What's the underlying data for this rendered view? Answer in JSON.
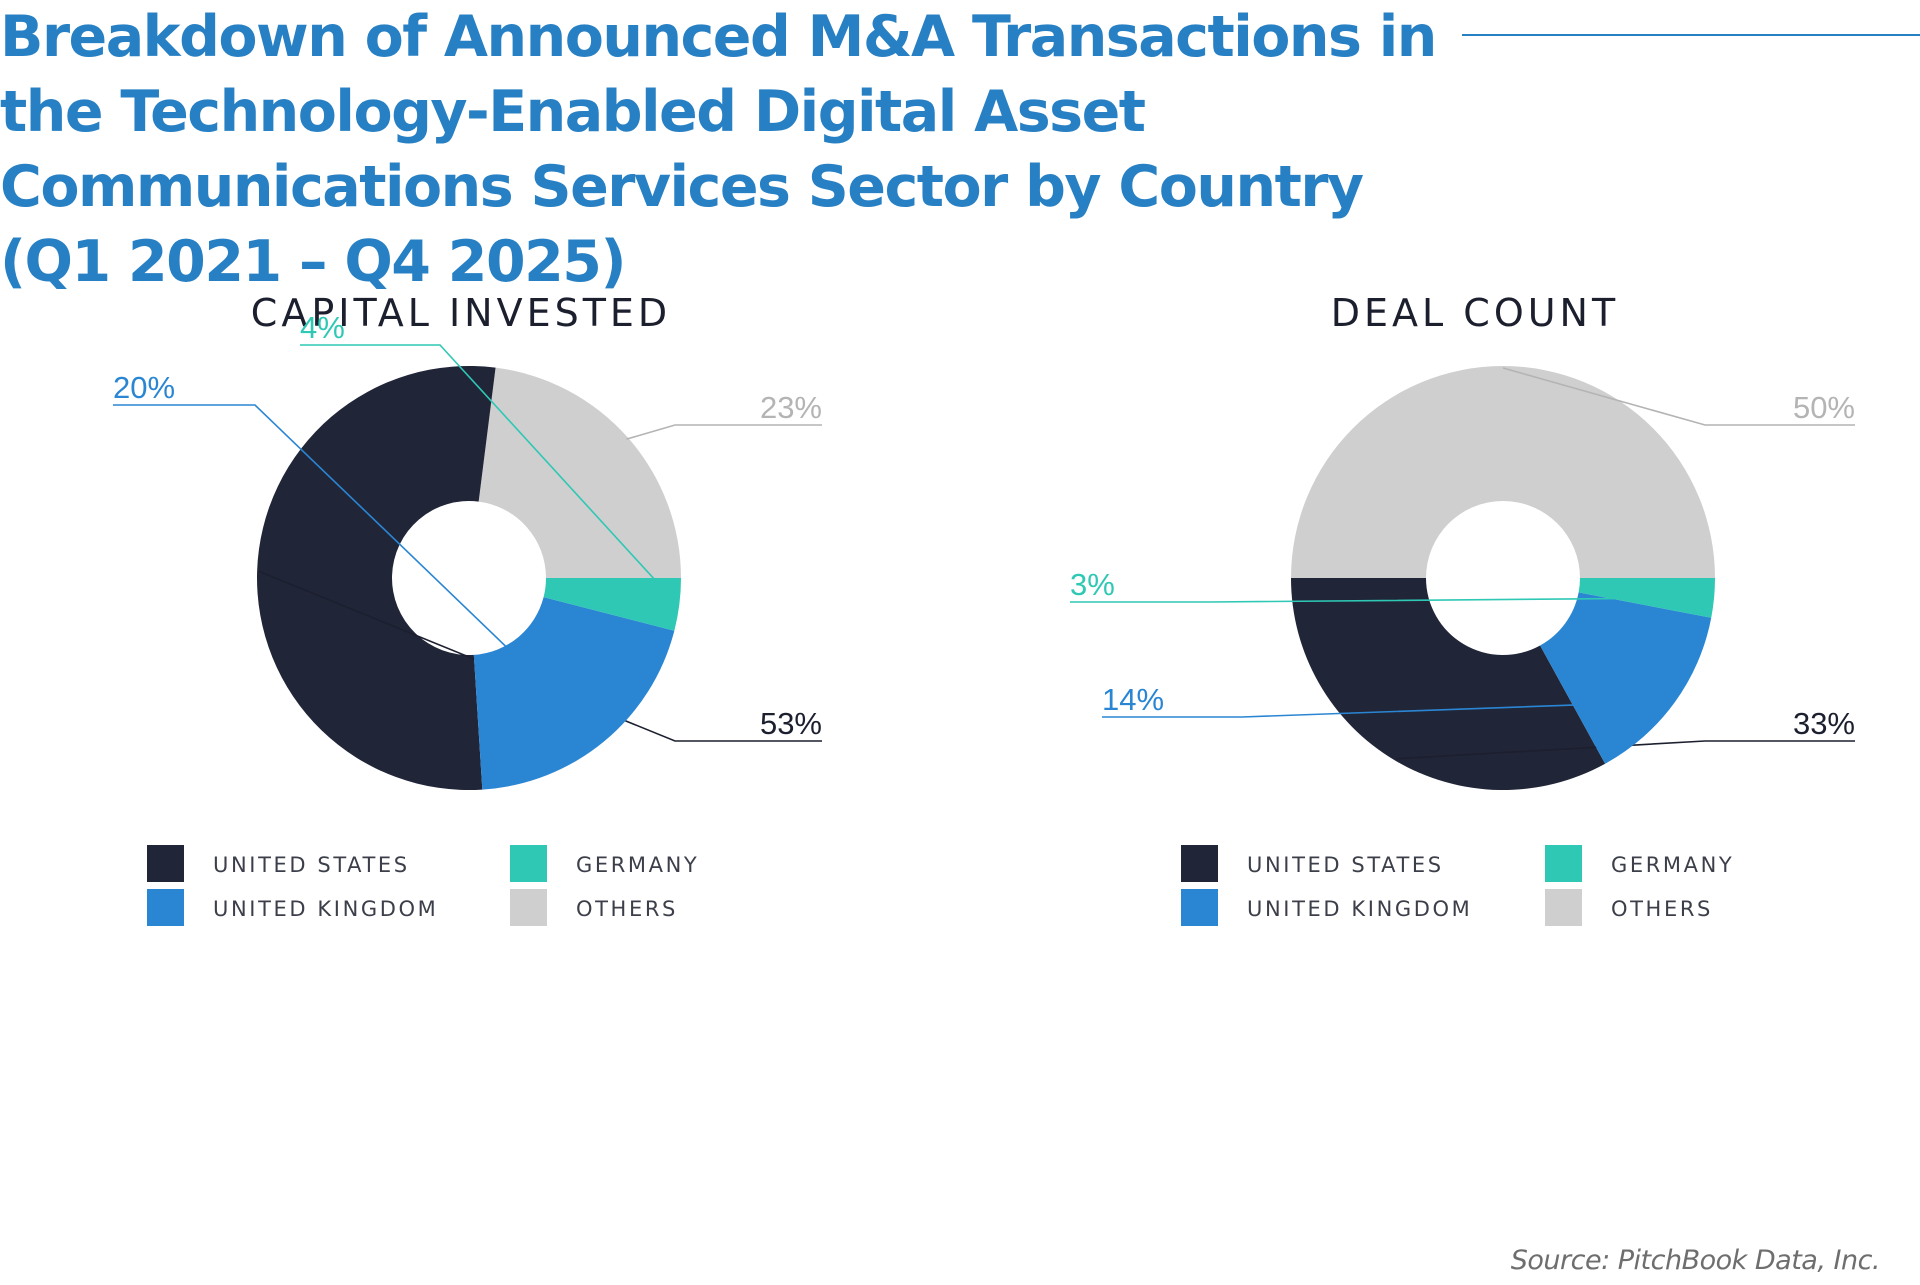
{
  "title": "Breakdown of Announced M&A Transactions in the Technology-Enabled Digital Asset Communications Services Sector by Country (Q1 2021 – Q4 2025)",
  "source": "Source: PitchBook Data, Inc.",
  "colors": {
    "united_states": "#212538",
    "united_kingdom": "#2a86d3",
    "germany": "#2ec8b4",
    "others": "#cfcfcf"
  },
  "chart_data": [
    {
      "type": "pie",
      "style": "donut",
      "title": "CAPITAL INVESTED",
      "unit": "%",
      "slices": [
        {
          "key": "others",
          "label": "Others",
          "value": 23,
          "text": "23%"
        },
        {
          "key": "united_states",
          "label": "United States",
          "value": 53,
          "text": "53%"
        },
        {
          "key": "united_kingdom",
          "label": "United Kingdom",
          "value": 20,
          "text": "20%"
        },
        {
          "key": "germany",
          "label": "Germany",
          "value": 4,
          "text": "4%"
        }
      ],
      "legend": [
        {
          "key": "united_states",
          "label": "UNITED STATES"
        },
        {
          "key": "germany",
          "label": "GERMANY"
        },
        {
          "key": "united_kingdom",
          "label": "UNITED KINGDOM"
        },
        {
          "key": "others",
          "label": "OTHERS"
        }
      ],
      "legend_position": "bottom"
    },
    {
      "type": "pie",
      "style": "donut",
      "title": "DEAL COUNT",
      "unit": "%",
      "slices": [
        {
          "key": "others",
          "label": "Others",
          "value": 50,
          "text": "50%"
        },
        {
          "key": "united_states",
          "label": "United States",
          "value": 33,
          "text": "33%"
        },
        {
          "key": "united_kingdom",
          "label": "United Kingdom",
          "value": 14,
          "text": "14%"
        },
        {
          "key": "germany",
          "label": "Germany",
          "value": 3,
          "text": "3%"
        }
      ],
      "legend": [
        {
          "key": "united_states",
          "label": "UNITED STATES"
        },
        {
          "key": "germany",
          "label": "GERMANY"
        },
        {
          "key": "united_kingdom",
          "label": "UNITED KINGDOM"
        },
        {
          "key": "others",
          "label": "OTHERS"
        }
      ],
      "legend_position": "bottom"
    }
  ]
}
